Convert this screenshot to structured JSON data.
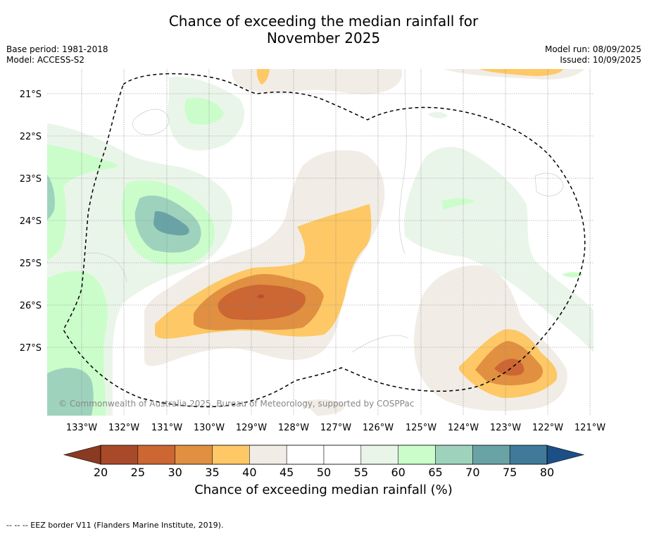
{
  "title_line1": "Chance of exceeding the median rainfall for",
  "title_line2": "November 2025",
  "base_period": "Base period: 1981-2018",
  "model": "Model: ACCESS-S2",
  "model_run": "Model run: 08/09/2025",
  "issued": "Issued: 10/09/2025",
  "copyright": "© Commonwealth of Australia 2025, Bureau of Meteorology, supported by COSPPac",
  "lat_labels": [
    "21°S",
    "22°S",
    "23°S",
    "24°S",
    "25°S",
    "26°S",
    "27°S"
  ],
  "lon_labels": [
    "133°W",
    "132°W",
    "131°W",
    "130°W",
    "129°W",
    "128°W",
    "127°W",
    "126°W",
    "125°W",
    "124°W",
    "123°W",
    "122°W",
    "121°W"
  ],
  "colorbar": {
    "title": "Chance of exceeding median rainfall (%)",
    "ticks": [
      "20",
      "25",
      "30",
      "35",
      "40",
      "45",
      "50",
      "55",
      "60",
      "65",
      "70",
      "75",
      "80"
    ],
    "colors": [
      "#a84a2a",
      "#cc6633",
      "#e09040",
      "#fdc865",
      "#f1ede6",
      "#ffffff",
      "#ffffff",
      "#eaf5ea",
      "#cbfdcb",
      "#9ed2bd",
      "#6aa3a6",
      "#3f7a9a"
    ],
    "below_color": "#8a3a20",
    "above_color": "#1d4f87"
  },
  "colors": {
    "brown_darkest": "#b8502c",
    "brown_dark": "#cc6633",
    "orange": "#e09040",
    "yellow": "#fdc865",
    "beige": "#f1ede6",
    "green_light": "#eaf5ea",
    "green": "#cbfdcb",
    "teal": "#9ed2bd",
    "teal_dark": "#6aa3a6"
  },
  "footer_note": "--  --  -- EEZ border V11 (Flanders Marine Institute, 2019)."
}
